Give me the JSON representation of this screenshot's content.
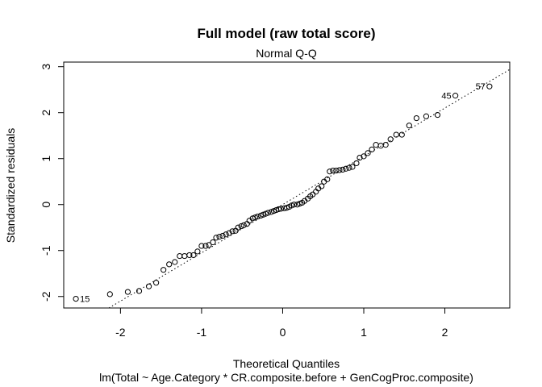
{
  "chart_data": {
    "type": "scatter",
    "title": "Full model (raw total score)",
    "subtitle": "Normal Q-Q",
    "xlabel": "Theoretical Quantiles",
    "ylabel": "Standardized residuals",
    "caption": "lm(Total ~ Age.Category * CR.composite.before + GenCogProc.composite)",
    "xlim": [
      -2.7,
      2.8
    ],
    "ylim": [
      -2.25,
      3.1
    ],
    "x_ticks": [
      -2,
      -1,
      0,
      1,
      2
    ],
    "x_tick_labels": [
      "-2",
      "-1",
      "0",
      "1",
      "2"
    ],
    "y_ticks": [
      -2,
      -1,
      0,
      1,
      2,
      3
    ],
    "y_tick_labels": [
      "-2",
      "-1",
      "0",
      "1",
      "2",
      "3"
    ],
    "reference_line": {
      "style": "dotted",
      "intercept": 0.0,
      "slope": 1.05
    },
    "grid": false,
    "legend": "none",
    "point_labels": [
      {
        "text": "15",
        "x": -2.55,
        "y": -2.05
      },
      {
        "text": "45",
        "x": 2.13,
        "y": 2.37
      },
      {
        "text": "57",
        "x": 2.55,
        "y": 2.57
      }
    ],
    "points": {
      "x": [
        -2.55,
        -2.13,
        -1.91,
        -1.77,
        -1.65,
        -1.56,
        -1.47,
        -1.4,
        -1.33,
        -1.27,
        -1.21,
        -1.15,
        -1.1,
        -1.05,
        -1.0,
        -0.95,
        -0.91,
        -0.86,
        -0.82,
        -0.78,
        -0.74,
        -0.7,
        -0.66,
        -0.62,
        -0.58,
        -0.55,
        -0.51,
        -0.48,
        -0.44,
        -0.41,
        -0.37,
        -0.34,
        -0.31,
        -0.27,
        -0.24,
        -0.21,
        -0.18,
        -0.14,
        -0.11,
        -0.08,
        -0.05,
        -0.02,
        0.02,
        0.05,
        0.08,
        0.11,
        0.14,
        0.18,
        0.21,
        0.24,
        0.27,
        0.31,
        0.34,
        0.37,
        0.41,
        0.44,
        0.48,
        0.51,
        0.55,
        0.58,
        0.62,
        0.66,
        0.7,
        0.74,
        0.78,
        0.82,
        0.86,
        0.91,
        0.95,
        1.0,
        1.05,
        1.1,
        1.15,
        1.21,
        1.27,
        1.33,
        1.4,
        1.47,
        1.56,
        1.65,
        1.77,
        1.91,
        2.13,
        2.55
      ],
      "y": [
        -2.05,
        -1.95,
        -1.9,
        -1.88,
        -1.78,
        -1.7,
        -1.42,
        -1.3,
        -1.25,
        -1.12,
        -1.12,
        -1.1,
        -1.1,
        -1.02,
        -0.9,
        -0.9,
        -0.88,
        -0.82,
        -0.72,
        -0.7,
        -0.68,
        -0.65,
        -0.62,
        -0.58,
        -0.57,
        -0.5,
        -0.47,
        -0.45,
        -0.42,
        -0.35,
        -0.3,
        -0.28,
        -0.26,
        -0.24,
        -0.22,
        -0.2,
        -0.18,
        -0.16,
        -0.14,
        -0.12,
        -0.1,
        -0.09,
        -0.08,
        -0.07,
        -0.05,
        -0.02,
        0.0,
        0.0,
        0.02,
        0.04,
        0.08,
        0.13,
        0.18,
        0.22,
        0.28,
        0.35,
        0.4,
        0.5,
        0.55,
        0.72,
        0.74,
        0.74,
        0.75,
        0.76,
        0.78,
        0.8,
        0.82,
        0.9,
        1.02,
        1.05,
        1.12,
        1.2,
        1.3,
        1.28,
        1.3,
        1.42,
        1.52,
        1.52,
        1.72,
        1.88,
        1.92,
        1.95,
        2.37,
        2.57
      ]
    }
  }
}
